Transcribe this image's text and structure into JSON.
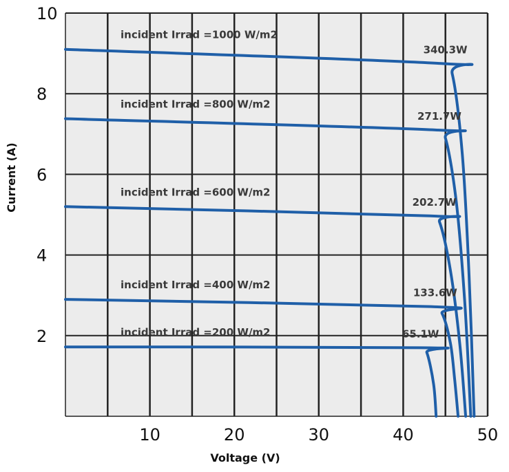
{
  "chart_data": {
    "type": "line",
    "xlabel": "Voltage (V)",
    "ylabel": "Current (A)",
    "xlim": [
      0,
      50
    ],
    "ylim": [
      0,
      10
    ],
    "x_ticks": [
      "10",
      "20",
      "30",
      "40",
      "50"
    ],
    "y_ticks": [
      "2",
      "4",
      "6",
      "8",
      "10"
    ],
    "grid": true,
    "line_color": "#1f5fa8",
    "grid_color": "#222222",
    "series": [
      {
        "name": "incident Irrad =1000 W/m2",
        "power_label": "340.3W",
        "points": [
          [
            0,
            9.1
          ],
          [
            44.5,
            8.75
          ],
          [
            45.8,
            8.5
          ],
          [
            47.0,
            6.5
          ],
          [
            47.8,
            3.5
          ],
          [
            48.4,
            0
          ]
        ]
      },
      {
        "name": "incident Irrad =800 W/m2",
        "power_label": "271.7W",
        "points": [
          [
            0,
            7.38
          ],
          [
            43.8,
            7.1
          ],
          [
            45.0,
            6.9
          ],
          [
            46.3,
            5.3
          ],
          [
            47.3,
            2.8
          ],
          [
            48.0,
            0
          ]
        ]
      },
      {
        "name": "incident Irrad =600 W/m2",
        "power_label": "202.7W",
        "points": [
          [
            0,
            5.2
          ],
          [
            43.2,
            4.97
          ],
          [
            44.3,
            4.82
          ],
          [
            45.6,
            3.6
          ],
          [
            46.7,
            1.8
          ],
          [
            47.4,
            0
          ]
        ]
      },
      {
        "name": "incident Irrad =400 W/m2",
        "power_label": "133.6W",
        "points": [
          [
            0,
            2.9
          ],
          [
            43.3,
            2.72
          ],
          [
            44.6,
            2.55
          ],
          [
            45.6,
            1.8
          ],
          [
            46.1,
            0.9
          ],
          [
            46.5,
            0
          ]
        ]
      },
      {
        "name": "incident Irrad =200 W/m2",
        "power_label": "65.1W",
        "points": [
          [
            0,
            1.72
          ],
          [
            42.0,
            1.7
          ],
          [
            42.8,
            1.58
          ],
          [
            43.6,
            0.8
          ],
          [
            43.9,
            0
          ]
        ]
      }
    ]
  }
}
